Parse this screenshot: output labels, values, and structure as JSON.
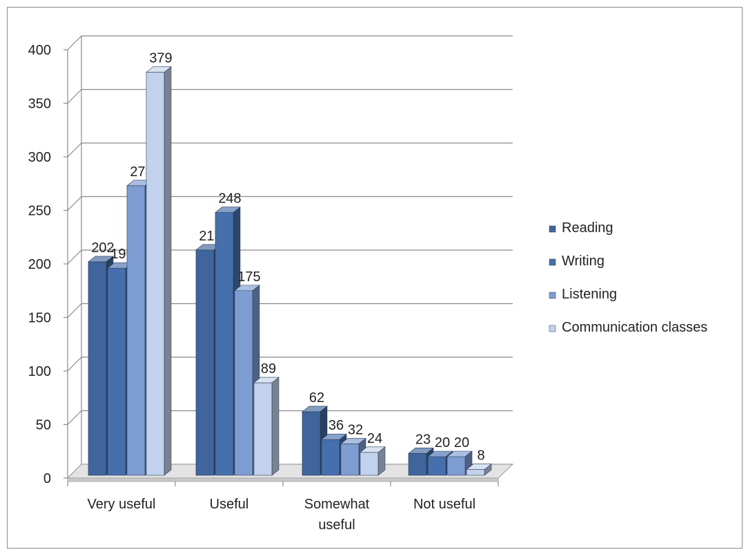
{
  "chart_data": {
    "type": "bar",
    "categories": [
      "Very useful",
      "Useful",
      "Somewhat useful",
      "Not useful"
    ],
    "series": [
      {
        "name": "Reading",
        "values": [
          202,
          213,
          62,
          23
        ]
      },
      {
        "name": "Writing",
        "values": [
          196,
          248,
          36,
          20
        ]
      },
      {
        "name": "Listening",
        "values": [
          273,
          175,
          32,
          20
        ]
      },
      {
        "name": "Communication classes",
        "values": [
          379,
          89,
          24,
          8
        ]
      }
    ],
    "ylim": [
      0,
      400
    ],
    "yticks": [
      0,
      50,
      100,
      150,
      200,
      250,
      300,
      350,
      400
    ],
    "grid": true,
    "legend_position": "right",
    "style": "3d-clustered-column",
    "colors": [
      "#3f659c",
      "#466fad",
      "#7d9dd3",
      "#c3d2ec"
    ]
  }
}
